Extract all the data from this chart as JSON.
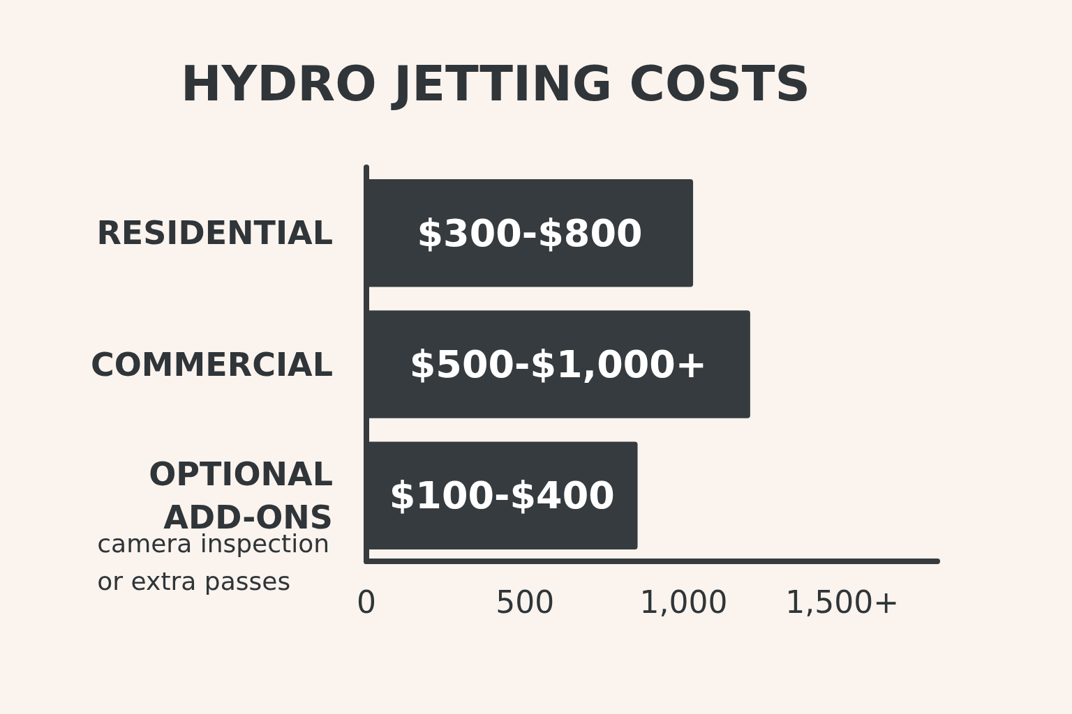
{
  "chart_data": {
    "type": "bar",
    "orientation": "horizontal",
    "title": "HYDRO JETTING COSTS",
    "categories": [
      "RESIDENTIAL",
      "COMMERCIAL",
      "OPTIONAL\nADD-ONS"
    ],
    "values": [
      1030,
      1210,
      855
    ],
    "value_labels": [
      "$300-$800",
      "$500-$1,000+",
      "$100-$400"
    ],
    "color": "#353b3e",
    "xlim": [
      0,
      1800
    ],
    "xticks": [
      0,
      500,
      {
        "value": 1000,
        "label": "1,000"
      },
      {
        "value": 1500,
        "label": "1,500+"
      }
    ],
    "annotations": [
      "camera inspection\nor extra passes"
    ],
    "grid": false
  }
}
